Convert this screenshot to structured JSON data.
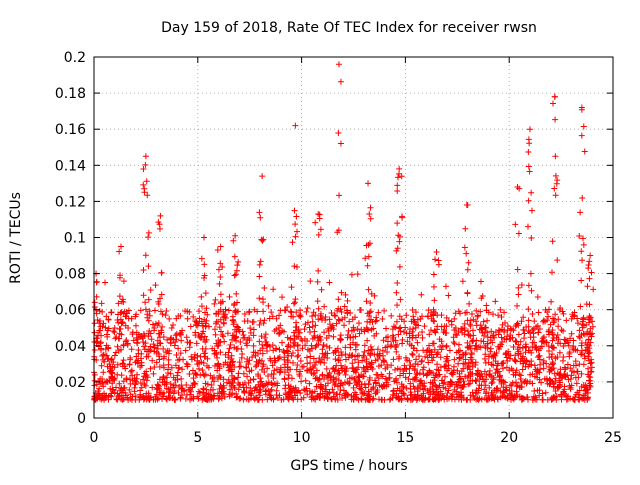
{
  "chart_data": {
    "type": "scatter",
    "title": "Day 159 of 2018, Rate Of TEC Index for receiver rwsn",
    "xlabel": "GPS time / hours",
    "ylabel": "ROTI / TECUs",
    "xlim": [
      0,
      25
    ],
    "ylim": [
      0,
      0.2
    ],
    "xticks": [
      0,
      5,
      10,
      15,
      20,
      25
    ],
    "xtick_labels": [
      "0",
      "5",
      "10",
      "15",
      "20",
      "25"
    ],
    "yticks": [
      0,
      0.02,
      0.04,
      0.06,
      0.08,
      0.1,
      0.12,
      0.14,
      0.16,
      0.18,
      0.2
    ],
    "ytick_labels": [
      "0",
      "0.02",
      "0.04",
      "0.06",
      "0.08",
      "0.1",
      "0.12",
      "0.14",
      "0.16",
      "0.18",
      "0.2"
    ],
    "grid": true,
    "marker": "+",
    "color": "#ff0000",
    "data_x_range": [
      0,
      24
    ],
    "typical_band": [
      0.01,
      0.06
    ],
    "spikes": [
      {
        "x": 0.1,
        "y": 0.08
      },
      {
        "x": 1.3,
        "y": 0.095
      },
      {
        "x": 2.5,
        "y": 0.145
      },
      {
        "x": 3.2,
        "y": 0.112
      },
      {
        "x": 5.3,
        "y": 0.1
      },
      {
        "x": 6.1,
        "y": 0.095
      },
      {
        "x": 6.8,
        "y": 0.101
      },
      {
        "x": 8.1,
        "y": 0.134
      },
      {
        "x": 9.7,
        "y": 0.162
      },
      {
        "x": 10.8,
        "y": 0.113
      },
      {
        "x": 11.8,
        "y": 0.196
      },
      {
        "x": 13.2,
        "y": 0.13
      },
      {
        "x": 14.7,
        "y": 0.138
      },
      {
        "x": 16.5,
        "y": 0.092
      },
      {
        "x": 18.0,
        "y": 0.118
      },
      {
        "x": 20.4,
        "y": 0.128
      },
      {
        "x": 21.0,
        "y": 0.16
      },
      {
        "x": 22.2,
        "y": 0.178
      },
      {
        "x": 23.5,
        "y": 0.172
      },
      {
        "x": 23.9,
        "y": 0.09
      }
    ]
  }
}
